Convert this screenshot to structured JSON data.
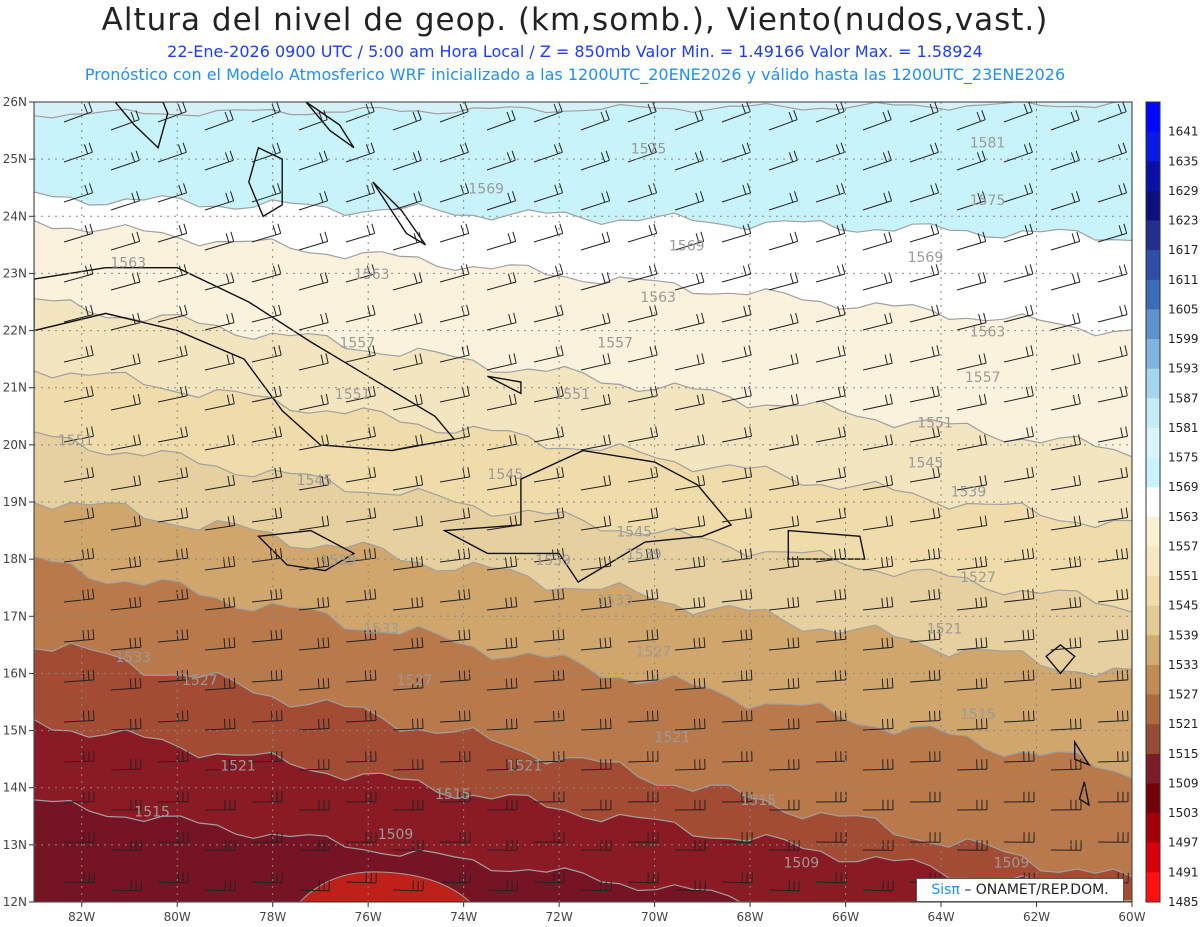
{
  "header": {
    "title": "Altura del nivel de geop. (km,somb.), Viento(nudos,vast.)",
    "subtitle_line1": "22-Ene-2026  0900 UTC / 5:00 am Hora Local / Z = 850mb     Valor Min. = 1.49166  Valor Max. = 1.58924",
    "subtitle_line2": "Pronóstico con el Modelo Atmosferico WRF inicializado a las 1200UTC_20ENE2026 y válido hasta las  1200UTC_23ENE2026"
  },
  "map": {
    "lon_range": [
      -83,
      -60
    ],
    "lat_range": [
      12,
      26
    ],
    "x_ticks": [
      "82W",
      "80W",
      "78W",
      "76W",
      "74W",
      "72W",
      "70W",
      "68W",
      "66W",
      "64W",
      "62W",
      "60W"
    ],
    "x_tick_values": [
      -82,
      -80,
      -78,
      -76,
      -74,
      -72,
      -70,
      -68,
      -66,
      -64,
      -62,
      -60
    ],
    "y_ticks": [
      "12N",
      "13N",
      "14N",
      "15N",
      "16N",
      "17N",
      "18N",
      "19N",
      "20N",
      "21N",
      "22N",
      "23N",
      "24N",
      "25N",
      "26N"
    ],
    "y_tick_values": [
      12,
      13,
      14,
      15,
      16,
      17,
      18,
      19,
      20,
      21,
      22,
      23,
      24,
      25,
      26
    ],
    "grid": true,
    "contour_labels": [
      {
        "text": "1575",
        "lon": -70.5,
        "lat": 25.1
      },
      {
        "text": "1581",
        "lon": -63.4,
        "lat": 25.2
      },
      {
        "text": "1569",
        "lon": -73.9,
        "lat": 24.4
      },
      {
        "text": "1575",
        "lon": -63.4,
        "lat": 24.2
      },
      {
        "text": "1569",
        "lon": -69.7,
        "lat": 23.4
      },
      {
        "text": "1569",
        "lon": -64.7,
        "lat": 23.2
      },
      {
        "text": "1563",
        "lon": -81.4,
        "lat": 23.1
      },
      {
        "text": "1563",
        "lon": -76.3,
        "lat": 22.9
      },
      {
        "text": "1563",
        "lon": -70.3,
        "lat": 22.5
      },
      {
        "text": "1563",
        "lon": -63.4,
        "lat": 21.9
      },
      {
        "text": "1557",
        "lon": -76.6,
        "lat": 21.7
      },
      {
        "text": "1557",
        "lon": -71.2,
        "lat": 21.7
      },
      {
        "text": "1557",
        "lon": -63.5,
        "lat": 21.1
      },
      {
        "text": "1551",
        "lon": -76.7,
        "lat": 20.8
      },
      {
        "text": "1551",
        "lon": -72.1,
        "lat": 20.8
      },
      {
        "text": "1551",
        "lon": -64.5,
        "lat": 20.3
      },
      {
        "text": "1551",
        "lon": -82.5,
        "lat": 20.0
      },
      {
        "text": "1545",
        "lon": -77.5,
        "lat": 19.3
      },
      {
        "text": "1545",
        "lon": -73.5,
        "lat": 19.4
      },
      {
        "text": "1545",
        "lon": -64.7,
        "lat": 19.6
      },
      {
        "text": "1539",
        "lon": -63.8,
        "lat": 19.1
      },
      {
        "text": "1545",
        "lon": -70.8,
        "lat": 18.4
      },
      {
        "text": "1539",
        "lon": -77.0,
        "lat": 17.9
      },
      {
        "text": "1539",
        "lon": -72.5,
        "lat": 17.9
      },
      {
        "text": "1539",
        "lon": -70.6,
        "lat": 18.0
      },
      {
        "text": "1527",
        "lon": -63.6,
        "lat": 17.6
      },
      {
        "text": "1533",
        "lon": -71.2,
        "lat": 17.2
      },
      {
        "text": "1533",
        "lon": -76.1,
        "lat": 16.7
      },
      {
        "text": "1521",
        "lon": -64.3,
        "lat": 16.7
      },
      {
        "text": "1533",
        "lon": -81.3,
        "lat": 16.2
      },
      {
        "text": "1527",
        "lon": -70.4,
        "lat": 16.3
      },
      {
        "text": "1527",
        "lon": -79.9,
        "lat": 15.8
      },
      {
        "text": "1527",
        "lon": -75.4,
        "lat": 15.8
      },
      {
        "text": "1515",
        "lon": -63.6,
        "lat": 15.2
      },
      {
        "text": "1521",
        "lon": -70.0,
        "lat": 14.8
      },
      {
        "text": "1521",
        "lon": -79.1,
        "lat": 14.3
      },
      {
        "text": "1521",
        "lon": -73.1,
        "lat": 14.3
      },
      {
        "text": "1515",
        "lon": -74.6,
        "lat": 13.8
      },
      {
        "text": "1515",
        "lon": -68.2,
        "lat": 13.7
      },
      {
        "text": "1515",
        "lon": -80.9,
        "lat": 13.5
      },
      {
        "text": "1509",
        "lon": -75.8,
        "lat": 13.1
      },
      {
        "text": "1509",
        "lon": -67.3,
        "lat": 12.6
      },
      {
        "text": "1509",
        "lon": -62.9,
        "lat": 12.6
      }
    ],
    "fill_colors": [
      "#ffe0e0",
      "#c0201a",
      "#8a0a14",
      "#761425",
      "#a34b33",
      "#b9794a",
      "#d0a66c",
      "#e6d0a0",
      "#f3e5bf",
      "#faf2dc",
      "#ffffff",
      "#c8f3fb",
      "#d6f0f8"
    ]
  },
  "colorbar": {
    "labels": [
      "1641",
      "1635",
      "1629",
      "1623",
      "1617",
      "1611",
      "1605",
      "1599",
      "1593",
      "1587",
      "1581",
      "1575",
      "1569",
      "1563",
      "1557",
      "1551",
      "1545",
      "1539",
      "1533",
      "1527",
      "1521",
      "1515",
      "1509",
      "1503",
      "1497",
      "1491",
      "1485"
    ],
    "colors": [
      "#0008ff",
      "#0a1ae6",
      "#0a10a8",
      "#0c0f80",
      "#232f8d",
      "#2d4fa6",
      "#3a6db7",
      "#5d92cd",
      "#7fb4de",
      "#a6d6ed",
      "#c6ecf6",
      "#d9f5fb",
      "#c8f3fb",
      "#ffffff",
      "#faf0d2",
      "#f6e8c3",
      "#efdcaa",
      "#e3c993",
      "#d2ab71",
      "#c08c54",
      "#ac6a3f",
      "#964b34",
      "#7c1c26",
      "#74000c",
      "#a50007",
      "#d8000b",
      "#ff1010"
    ]
  },
  "credit": {
    "sis": "Sisπ",
    "org": "– ONAMET/REP.DOM."
  }
}
